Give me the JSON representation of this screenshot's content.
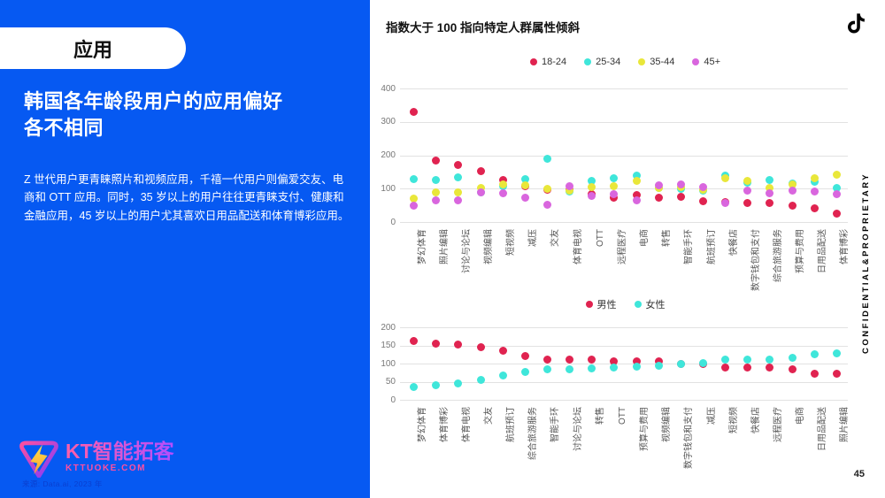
{
  "colors": {
    "accent": "#0659f2",
    "age_18_24": "#e02350",
    "age_25_34": "#3fe6da",
    "age_35_44": "#e9e73a",
    "age_45_plus": "#d966de",
    "male": "#e02350",
    "female": "#3fe6da"
  },
  "page": {
    "number": "45",
    "confidential": "CONFIDENTIAL&PROPRIETARY",
    "source": "来源: Data.ai, 2023 年"
  },
  "sidebar": {
    "badge": "应用",
    "title": "韩国各年龄段用户的应用偏好\n各不相同",
    "body": "Z 世代用户更青睐照片和视频应用，千禧一代用户则偏爱交友、电商和 OTT 应用。同时，35 岁以上的用户往往更青睐支付、健康和金融应用，45 岁以上的用户尤其喜欢日用品配送和体育博彩应用。",
    "logo_name": "KT智能拓客",
    "logo_sub": "KTTUOKE.COM"
  },
  "header": {
    "title": "指数大于 100 指向特定人群属性倾斜"
  },
  "chart_data": [
    {
      "type": "scatter",
      "name": "age-chart",
      "ylim": [
        0,
        400
      ],
      "yticks": [
        0,
        100,
        200,
        300,
        400
      ],
      "grid": true,
      "legend_position": "top-center",
      "categories": [
        "梦幻体育",
        "照片编辑",
        "讨论与论坛",
        "视频编辑",
        "短视频",
        "减压",
        "交友",
        "体育电视",
        "OTT",
        "远程医疗",
        "电商",
        "转售",
        "智能手环",
        "航班预订",
        "快餐店",
        "数字钱包和支付",
        "综合旅游服务",
        "预算与费用",
        "日用品配送",
        "体育博彩"
      ],
      "series": [
        {
          "name": "18-24",
          "color": "#e02350",
          "values": [
            330,
            183,
            172,
            152,
            127,
            108,
            97,
            96,
            84,
            74,
            80,
            74,
            76,
            61,
            60,
            57,
            57,
            48,
            42,
            26
          ]
        },
        {
          "name": "25-34",
          "color": "#3fe6da",
          "values": [
            128,
            127,
            134,
            90,
            108,
            129,
            190,
            92,
            124,
            130,
            140,
            101,
            99,
            94,
            140,
            118,
            127,
            115,
            120,
            101
          ]
        },
        {
          "name": "35-44",
          "color": "#e9e73a",
          "values": [
            70,
            89,
            89,
            101,
            112,
            110,
            100,
            94,
            105,
            108,
            122,
            103,
            105,
            98,
            130,
            122,
            103,
            112,
            132,
            143
          ]
        },
        {
          "name": "45+",
          "color": "#d966de",
          "values": [
            48,
            64,
            66,
            88,
            85,
            74,
            52,
            106,
            79,
            83,
            65,
            110,
            112,
            105,
            58,
            94,
            85,
            95,
            92,
            83
          ]
        }
      ]
    },
    {
      "type": "scatter",
      "name": "gender-chart",
      "ylim": [
        0,
        200
      ],
      "yticks": [
        0,
        50,
        100,
        150,
        200
      ],
      "grid": true,
      "legend_position": "top-center",
      "categories": [
        "梦幻体育",
        "体育博彩",
        "体育电视",
        "交友",
        "航班预订",
        "综合旅游服务",
        "智能手环",
        "讨论与论坛",
        "转售",
        "OTT",
        "预算与费用",
        "视频编辑",
        "数字钱包和支付",
        "减压",
        "短视频",
        "快餐店",
        "远程医疗",
        "电商",
        "日用品配送",
        "照片编辑"
      ],
      "series": [
        {
          "name": "男性",
          "color": "#e02350",
          "values": [
            163,
            155,
            153,
            145,
            135,
            121,
            112,
            112,
            112,
            107,
            106,
            106,
            100,
            100,
            89,
            89,
            88,
            83,
            73,
            71
          ]
        },
        {
          "name": "女性",
          "color": "#3fe6da",
          "values": [
            35,
            40,
            45,
            55,
            66,
            78,
            84,
            85,
            86,
            90,
            92,
            93,
            100,
            101,
            112,
            112,
            112,
            116,
            126,
            128
          ]
        }
      ]
    }
  ]
}
